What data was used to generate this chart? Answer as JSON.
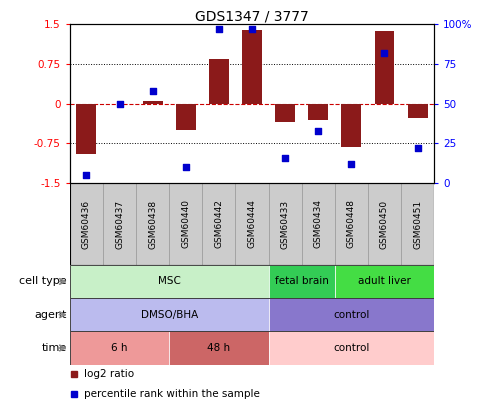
{
  "title": "GDS1347 / 3777",
  "samples": [
    "GSM60436",
    "GSM60437",
    "GSM60438",
    "GSM60440",
    "GSM60442",
    "GSM60444",
    "GSM60433",
    "GSM60434",
    "GSM60448",
    "GSM60450",
    "GSM60451"
  ],
  "log2_ratio": [
    -0.95,
    0.0,
    0.05,
    -0.5,
    0.85,
    1.4,
    -0.35,
    -0.3,
    -0.82,
    1.38,
    -0.27
  ],
  "percentile_rank": [
    5,
    50,
    58,
    10,
    97,
    97,
    16,
    33,
    12,
    82,
    22
  ],
  "bar_color": "#8B1A1A",
  "dot_color": "#0000CD",
  "ylim_left": [
    -1.5,
    1.5
  ],
  "ylim_right": [
    0,
    100
  ],
  "yticks_left": [
    -1.5,
    -0.75,
    0,
    0.75,
    1.5
  ],
  "yticks_left_labels": [
    "-1.5",
    "-0.75",
    "0",
    "0.75",
    "1.5"
  ],
  "yticks_right": [
    0,
    25,
    50,
    75,
    100
  ],
  "yticks_right_labels": [
    "0",
    "25",
    "50",
    "75",
    "100%"
  ],
  "hline_color": "#CC0000",
  "dotted_color": "black",
  "cell_type_items": [
    {
      "label": "MSC",
      "start": 0,
      "end": 6,
      "color": "#C8F0C8"
    },
    {
      "label": "fetal brain",
      "start": 6,
      "end": 8,
      "color": "#33CC55"
    },
    {
      "label": "adult liver",
      "start": 8,
      "end": 11,
      "color": "#44DD44"
    }
  ],
  "agent_items": [
    {
      "label": "DMSO/BHA",
      "start": 0,
      "end": 6,
      "color": "#BBBBEE"
    },
    {
      "label": "control",
      "start": 6,
      "end": 11,
      "color": "#8877CC"
    }
  ],
  "time_items": [
    {
      "label": "6 h",
      "start": 0,
      "end": 3,
      "color": "#EE9999"
    },
    {
      "label": "48 h",
      "start": 3,
      "end": 6,
      "color": "#CC6666"
    },
    {
      "label": "control",
      "start": 6,
      "end": 11,
      "color": "#FFCCCC"
    }
  ],
  "row_labels": [
    "cell type",
    "agent",
    "time"
  ],
  "legend_items": [
    {
      "label": "log2 ratio",
      "color": "#8B1A1A"
    },
    {
      "label": "percentile rank within the sample",
      "color": "#0000CD"
    }
  ],
  "sample_box_color": "#CCCCCC",
  "sample_box_edge": "#999999"
}
